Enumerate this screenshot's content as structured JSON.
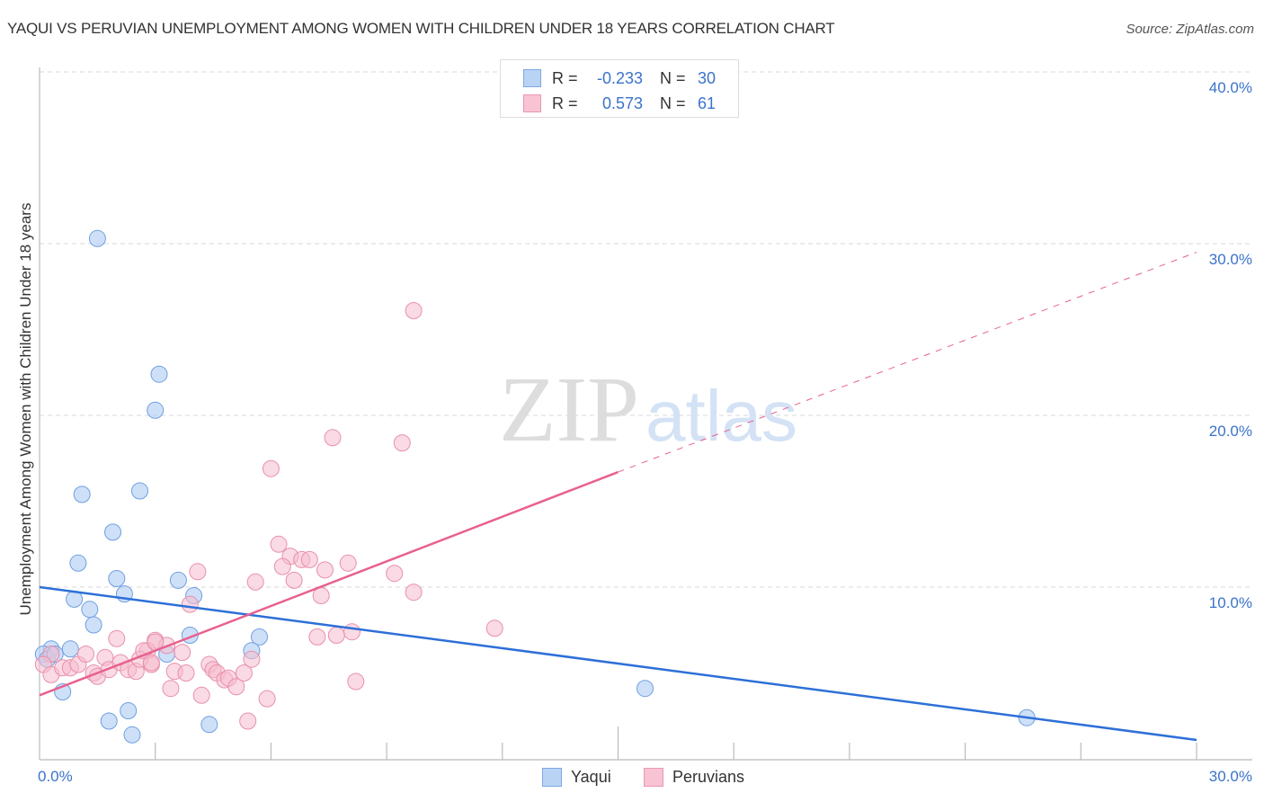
{
  "header": {
    "title": "YAQUI VS PERUVIAN UNEMPLOYMENT AMONG WOMEN WITH CHILDREN UNDER 18 YEARS CORRELATION CHART",
    "source": "Source: ZipAtlas.com"
  },
  "legend_top": {
    "rows": [
      {
        "series": "Yaqui",
        "swatch": "blue-square-icon",
        "r_label": "R =",
        "r_value": "-0.233",
        "n_label": "N =",
        "n_value": "30"
      },
      {
        "series": "Peruvians",
        "swatch": "pink-square-icon",
        "r_label": "R =",
        "r_value": "0.573",
        "n_label": "N =",
        "n_value": "61"
      }
    ]
  },
  "legend_bottom": {
    "items": [
      {
        "label": "Yaqui",
        "swatch": "blue-square-icon"
      },
      {
        "label": "Peruvians",
        "swatch": "pink-square-icon"
      }
    ]
  },
  "axes": {
    "y_label": "Unemployment Among Women with Children Under 18 years",
    "y_tick_labels": [
      "40.0%",
      "30.0%",
      "20.0%",
      "10.0%"
    ],
    "x_min_label": "0.0%",
    "x_max_label": "30.0%"
  },
  "watermark": {
    "zip": "ZIP",
    "atlas": "atlas"
  },
  "colors": {
    "yaqui_fill": "#b9d3f5",
    "yaqui_stroke": "#6f9fe0",
    "yaqui_line": "#2d6fd8",
    "peruvians_fill": "#f6bccd",
    "peruvians_stroke": "#e890ab",
    "peruvians_line": "#e8608d",
    "value_text": "#3b73c9",
    "grid": "#d9d9d9",
    "axis": "#bbbbbb",
    "watermark_zip": "#dddddd",
    "watermark_atlas": "#d3e2f5"
  },
  "chart_data": {
    "type": "scatter",
    "title": "YAQUI VS PERUVIAN UNEMPLOYMENT AMONG WOMEN WITH CHILDREN UNDER 18 YEARS CORRELATION CHART",
    "xlabel": "",
    "ylabel": "Unemployment Among Women with Children Under 18 years",
    "xlim": [
      0,
      30
    ],
    "ylim": [
      0,
      40
    ],
    "x_ticks": [
      0,
      3,
      6,
      9,
      12,
      15,
      18,
      21,
      24,
      27,
      30
    ],
    "x_tick_labels_shown": {
      "0": "0.0%",
      "30": "30.0%"
    },
    "y_ticks": [
      10,
      20,
      30,
      40
    ],
    "y_tick_labels": [
      "10.0%",
      "20.0%",
      "30.0%",
      "40.0%"
    ],
    "grid": true,
    "legend_position": "top-center (stats) and bottom-center (series)",
    "series": [
      {
        "name": "Yaqui",
        "r": -0.233,
        "n": 30,
        "points": [
          [
            1.5,
            30.3
          ],
          [
            3.1,
            22.4
          ],
          [
            3.0,
            20.3
          ],
          [
            1.1,
            15.4
          ],
          [
            2.6,
            15.6
          ],
          [
            1.9,
            13.2
          ],
          [
            1.0,
            11.4
          ],
          [
            2.0,
            10.5
          ],
          [
            3.6,
            10.4
          ],
          [
            2.2,
            9.6
          ],
          [
            0.9,
            9.3
          ],
          [
            1.3,
            8.7
          ],
          [
            1.4,
            7.8
          ],
          [
            4.0,
            9.5
          ],
          [
            3.9,
            7.2
          ],
          [
            3.3,
            6.1
          ],
          [
            5.7,
            7.1
          ],
          [
            5.5,
            6.3
          ],
          [
            4.4,
            2.0
          ],
          [
            1.8,
            2.2
          ],
          [
            2.3,
            2.8
          ],
          [
            2.4,
            1.4
          ],
          [
            0.6,
            3.9
          ],
          [
            15.7,
            4.1
          ],
          [
            25.6,
            2.4
          ],
          [
            0.3,
            6.4
          ],
          [
            0.8,
            6.4
          ],
          [
            0.1,
            6.1
          ],
          [
            0.2,
            5.8
          ],
          [
            0.4,
            6.1
          ]
        ],
        "trendline": {
          "x": [
            0,
            30
          ],
          "y": [
            10.0,
            1.1
          ],
          "style": "solid"
        }
      },
      {
        "name": "Peruvians",
        "r": 0.573,
        "n": 61,
        "points": [
          [
            9.7,
            26.1
          ],
          [
            7.6,
            18.7
          ],
          [
            9.4,
            18.4
          ],
          [
            6.0,
            16.9
          ],
          [
            6.2,
            12.5
          ],
          [
            6.5,
            11.8
          ],
          [
            6.8,
            11.6
          ],
          [
            7.0,
            11.6
          ],
          [
            6.3,
            11.2
          ],
          [
            7.4,
            11.0
          ],
          [
            8.0,
            11.4
          ],
          [
            6.6,
            10.4
          ],
          [
            5.6,
            10.3
          ],
          [
            7.3,
            9.5
          ],
          [
            9.2,
            10.8
          ],
          [
            9.7,
            9.7
          ],
          [
            11.8,
            7.6
          ],
          [
            7.2,
            7.1
          ],
          [
            7.7,
            7.2
          ],
          [
            8.1,
            7.4
          ],
          [
            8.2,
            4.5
          ],
          [
            5.9,
            3.5
          ],
          [
            5.4,
            2.2
          ],
          [
            4.1,
            10.9
          ],
          [
            3.9,
            9.0
          ],
          [
            3.0,
            6.9
          ],
          [
            3.3,
            6.6
          ],
          [
            3.7,
            6.2
          ],
          [
            2.8,
            6.3
          ],
          [
            2.9,
            5.5
          ],
          [
            3.5,
            5.1
          ],
          [
            3.8,
            5.0
          ],
          [
            3.4,
            4.1
          ],
          [
            4.4,
            5.5
          ],
          [
            4.5,
            5.2
          ],
          [
            4.6,
            5.0
          ],
          [
            4.8,
            4.6
          ],
          [
            4.9,
            4.7
          ],
          [
            5.1,
            4.2
          ],
          [
            5.3,
            5.0
          ],
          [
            5.5,
            5.8
          ],
          [
            4.2,
            3.7
          ],
          [
            2.0,
            7.0
          ],
          [
            0.3,
            6.1
          ],
          [
            0.1,
            5.5
          ],
          [
            0.3,
            4.9
          ],
          [
            0.6,
            5.3
          ],
          [
            0.8,
            5.3
          ],
          [
            1.0,
            5.5
          ],
          [
            1.2,
            6.1
          ],
          [
            1.4,
            5.0
          ],
          [
            1.5,
            4.8
          ],
          [
            1.7,
            5.9
          ],
          [
            1.8,
            5.2
          ],
          [
            2.1,
            5.6
          ],
          [
            2.3,
            5.2
          ],
          [
            2.5,
            5.1
          ],
          [
            2.6,
            5.8
          ],
          [
            2.7,
            6.3
          ],
          [
            2.9,
            5.6
          ],
          [
            3.0,
            6.8
          ]
        ],
        "trendline": {
          "x": [
            0,
            15,
            30
          ],
          "y": [
            3.7,
            16.7,
            29.5
          ],
          "style": "solid to x=15, dashed beyond"
        }
      }
    ]
  }
}
